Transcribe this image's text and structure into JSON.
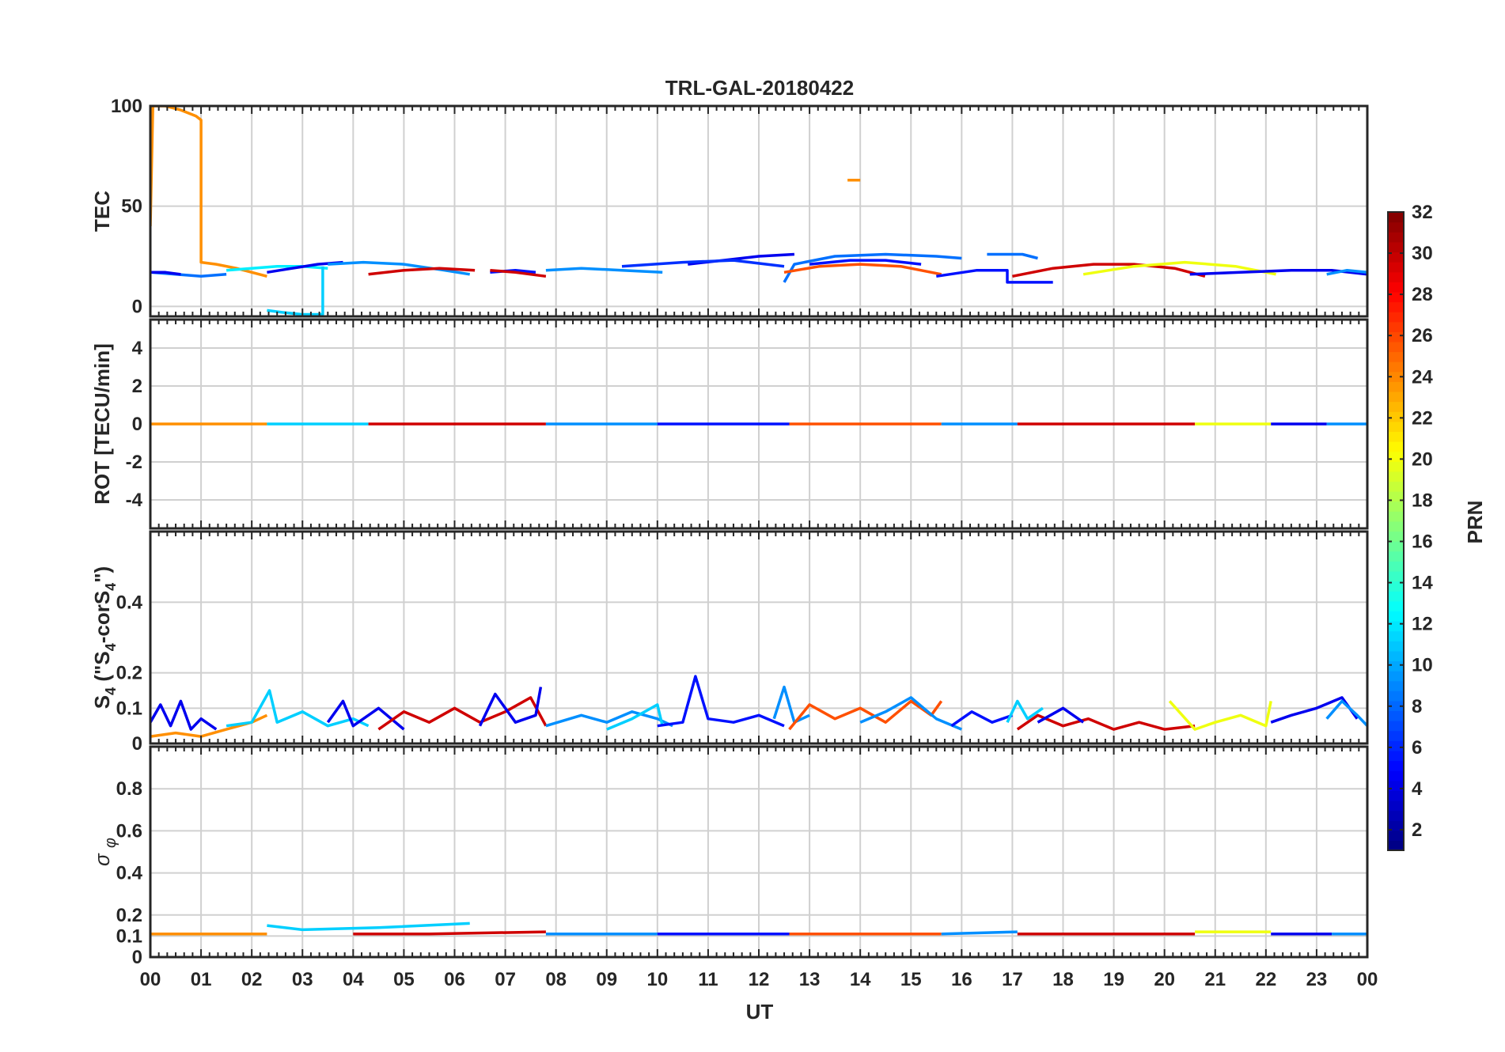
{
  "chart_data": {
    "type": "line",
    "title": "TRL-GAL-20180422",
    "xlabel": "UT",
    "x_ticks": [
      "00",
      "01",
      "02",
      "03",
      "04",
      "05",
      "06",
      "07",
      "08",
      "09",
      "10",
      "11",
      "12",
      "13",
      "14",
      "15",
      "16",
      "17",
      "18",
      "19",
      "20",
      "21",
      "22",
      "23",
      "00"
    ],
    "xlim": [
      0,
      24
    ],
    "colorbar": {
      "label": "PRN",
      "range": [
        1,
        32
      ],
      "ticks": [
        "2",
        "4",
        "6",
        "8",
        "10",
        "12",
        "14",
        "16",
        "18",
        "20",
        "22",
        "24",
        "26",
        "28",
        "30",
        "32"
      ]
    },
    "panels": [
      {
        "ylabel": "TEC",
        "ylim": [
          -5,
          100
        ],
        "yticks": [
          "0",
          "50",
          "100"
        ],
        "series": [
          {
            "prn": 24,
            "x": [
              0.0,
              0.05,
              0.3,
              0.6,
              0.9,
              1.0,
              1.0,
              1.3,
              1.7,
              2.0,
              2.3
            ],
            "y": [
              40,
              100,
              100,
              98,
              95,
              93,
              22,
              21,
              19,
              17,
              15
            ]
          },
          {
            "prn": 24,
            "x": [
              13.75,
              14.0
            ],
            "y": [
              63,
              63
            ]
          },
          {
            "prn": 8,
            "x": [
              0.0,
              0.5,
              1.0,
              1.5
            ],
            "y": [
              17,
              16,
              15,
              16
            ]
          },
          {
            "prn": 12,
            "x": [
              1.5,
              2.0,
              2.5,
              3.0,
              3.5
            ],
            "y": [
              18,
              19,
              20,
              20,
              19
            ]
          },
          {
            "prn": 11,
            "x": [
              2.3,
              2.6,
              3.0,
              3.4,
              3.4
            ],
            "y": [
              -2,
              -3,
              -4,
              -4,
              20
            ]
          },
          {
            "prn": 4,
            "x": [
              0.0,
              0.3,
              0.6
            ],
            "y": [
              17,
              17,
              16
            ]
          },
          {
            "prn": 4,
            "x": [
              2.3,
              2.8,
              3.3,
              3.8
            ],
            "y": [
              17,
              19,
              21,
              22
            ]
          },
          {
            "prn": 9,
            "x": [
              3.5,
              4.2,
              5.0,
              5.8,
              6.3
            ],
            "y": [
              21,
              22,
              21,
              18,
              16
            ]
          },
          {
            "prn": 30,
            "x": [
              4.3,
              5.0,
              5.7,
              6.4
            ],
            "y": [
              16,
              18,
              19,
              18
            ]
          },
          {
            "prn": 5,
            "x": [
              6.7,
              7.2,
              7.6
            ],
            "y": [
              17,
              18,
              17
            ]
          },
          {
            "prn": 30,
            "x": [
              6.7,
              7.2,
              7.8
            ],
            "y": [
              18,
              17,
              15
            ]
          },
          {
            "prn": 9,
            "x": [
              7.8,
              8.5,
              9.3,
              10.1
            ],
            "y": [
              18,
              19,
              18,
              17
            ]
          },
          {
            "prn": 4,
            "x": [
              10.6,
              11.3,
              12.0,
              12.7
            ],
            "y": [
              21,
              23,
              25,
              26
            ]
          },
          {
            "prn": 6,
            "x": [
              9.3,
              10.5,
              11.5,
              12.5
            ],
            "y": [
              20,
              22,
              23,
              20
            ]
          },
          {
            "prn": 8,
            "x": [
              12.5,
              12.7,
              13.5,
              14.5,
              15.5,
              16.0
            ],
            "y": [
              12,
              21,
              25,
              26,
              25,
              24
            ]
          },
          {
            "prn": 26,
            "x": [
              12.5,
              13.2,
              14.0,
              14.8,
              15.6
            ],
            "y": [
              17,
              20,
              21,
              20,
              16
            ]
          },
          {
            "prn": 5,
            "x": [
              13.0,
              13.8,
              14.5,
              15.2
            ],
            "y": [
              21,
              23,
              23,
              21
            ]
          },
          {
            "prn": 5,
            "x": [
              15.5,
              16.3,
              16.9,
              16.9,
              17.8
            ],
            "y": [
              15,
              18,
              18,
              12,
              12
            ]
          },
          {
            "prn": 8,
            "x": [
              16.5,
              17.2,
              17.5
            ],
            "y": [
              26,
              26,
              24
            ]
          },
          {
            "prn": 30,
            "x": [
              17.0,
              17.8,
              18.6,
              19.4,
              20.2,
              20.8
            ],
            "y": [
              15,
              19,
              21,
              21,
              19,
              15
            ]
          },
          {
            "prn": 20,
            "x": [
              18.4,
              19.4,
              20.4,
              21.4,
              22.2
            ],
            "y": [
              16,
              20,
              22,
              20,
              16
            ]
          },
          {
            "prn": 4,
            "x": [
              20.5,
              21.5,
              22.5,
              23.3,
              24.0
            ],
            "y": [
              16,
              17,
              18,
              18,
              16
            ]
          },
          {
            "prn": 9,
            "x": [
              23.2,
              23.6,
              24.0
            ],
            "y": [
              16,
              18,
              17
            ]
          }
        ]
      },
      {
        "ylabel": "ROT [TECU/min]",
        "ylim": [
          -5.5,
          5.5
        ],
        "yticks": [
          "-4",
          "-2",
          "0",
          "2",
          "4"
        ],
        "series": [
          {
            "prn": 24,
            "x": [
              0.0,
              2.3
            ],
            "y": [
              0,
              0
            ]
          },
          {
            "prn": 11,
            "x": [
              2.3,
              4.3
            ],
            "y": [
              0,
              0
            ]
          },
          {
            "prn": 30,
            "x": [
              4.3,
              7.8
            ],
            "y": [
              0,
              0
            ]
          },
          {
            "prn": 9,
            "x": [
              7.8,
              10.0
            ],
            "y": [
              0,
              0
            ]
          },
          {
            "prn": 5,
            "x": [
              10.0,
              12.6
            ],
            "y": [
              0,
              0
            ]
          },
          {
            "prn": 26,
            "x": [
              12.6,
              15.6
            ],
            "y": [
              0,
              0
            ]
          },
          {
            "prn": 9,
            "x": [
              15.6,
              17.1
            ],
            "y": [
              0,
              0
            ]
          },
          {
            "prn": 30,
            "x": [
              17.1,
              20.6
            ],
            "y": [
              0,
              0
            ]
          },
          {
            "prn": 20,
            "x": [
              20.6,
              22.1
            ],
            "y": [
              0,
              0
            ]
          },
          {
            "prn": 4,
            "x": [
              22.1,
              23.2
            ],
            "y": [
              0,
              0
            ]
          },
          {
            "prn": 9,
            "x": [
              23.2,
              24.0
            ],
            "y": [
              0,
              0
            ]
          }
        ]
      },
      {
        "ylabel": "S4 (\"S4-corS4\")",
        "ylabel_parts": {
          "s": "S",
          "sub": "4",
          "open": " (\"S",
          "sub2": "4",
          "mid": "-corS",
          "sub3": "4",
          "close": "\")"
        },
        "ylim": [
          0,
          0.6
        ],
        "yticks": [
          "0",
          "0.1",
          "0.2",
          "0.4"
        ],
        "series": [
          {
            "prn": 4,
            "x": [
              0.0,
              0.2,
              0.4,
              0.6,
              0.8,
              1.0,
              1.3
            ],
            "y": [
              0.06,
              0.11,
              0.05,
              0.12,
              0.04,
              0.07,
              0.04
            ]
          },
          {
            "prn": 24,
            "x": [
              0.0,
              0.5,
              1.0,
              1.5,
              2.0,
              2.3
            ],
            "y": [
              0.02,
              0.03,
              0.02,
              0.04,
              0.06,
              0.08
            ]
          },
          {
            "prn": 11,
            "x": [
              1.5,
              2.0,
              2.35,
              2.5,
              3.0,
              3.5,
              4.0,
              4.3
            ],
            "y": [
              0.05,
              0.06,
              0.15,
              0.06,
              0.09,
              0.05,
              0.07,
              0.05
            ]
          },
          {
            "prn": 4,
            "x": [
              3.5,
              3.8,
              4.0,
              4.5,
              5.0
            ],
            "y": [
              0.06,
              0.12,
              0.05,
              0.1,
              0.04
            ]
          },
          {
            "prn": 30,
            "x": [
              4.5,
              5.0,
              5.5,
              6.0,
              6.5,
              7.0,
              7.5,
              7.8
            ],
            "y": [
              0.04,
              0.09,
              0.06,
              0.1,
              0.06,
              0.09,
              0.13,
              0.05
            ]
          },
          {
            "prn": 4,
            "x": [
              6.5,
              6.8,
              7.2,
              7.6,
              7.7
            ],
            "y": [
              0.05,
              0.14,
              0.06,
              0.08,
              0.16
            ]
          },
          {
            "prn": 9,
            "x": [
              7.8,
              8.5,
              9.0,
              9.5,
              10.0,
              10.3
            ],
            "y": [
              0.05,
              0.08,
              0.06,
              0.09,
              0.07,
              0.05
            ]
          },
          {
            "prn": 11,
            "x": [
              9.0,
              9.5,
              10.0,
              10.1
            ],
            "y": [
              0.04,
              0.07,
              0.11,
              0.05
            ]
          },
          {
            "prn": 5,
            "x": [
              10.0,
              10.5,
              10.75,
              11.0,
              11.5,
              12.0,
              12.5
            ],
            "y": [
              0.05,
              0.06,
              0.19,
              0.07,
              0.06,
              0.08,
              0.05
            ]
          },
          {
            "prn": 9,
            "x": [
              12.3,
              12.5,
              12.7,
              13.0
            ],
            "y": [
              0.07,
              0.16,
              0.06,
              0.08
            ]
          },
          {
            "prn": 26,
            "x": [
              12.6,
              13.0,
              13.5,
              14.0,
              14.5,
              15.0,
              15.4,
              15.6
            ],
            "y": [
              0.04,
              0.11,
              0.07,
              0.1,
              0.06,
              0.12,
              0.08,
              0.12
            ]
          },
          {
            "prn": 9,
            "x": [
              14.0,
              14.5,
              15.0,
              15.5,
              16.0
            ],
            "y": [
              0.06,
              0.09,
              0.13,
              0.07,
              0.04
            ]
          },
          {
            "prn": 5,
            "x": [
              15.8,
              16.2,
              16.6,
              17.0
            ],
            "y": [
              0.05,
              0.09,
              0.06,
              0.08
            ]
          },
          {
            "prn": 11,
            "x": [
              16.9,
              17.1,
              17.3,
              17.6
            ],
            "y": [
              0.06,
              0.12,
              0.07,
              0.1
            ]
          },
          {
            "prn": 30,
            "x": [
              17.1,
              17.5,
              18.0,
              18.5,
              19.0,
              19.5,
              20.0,
              20.6
            ],
            "y": [
              0.04,
              0.08,
              0.05,
              0.07,
              0.04,
              0.06,
              0.04,
              0.05
            ]
          },
          {
            "prn": 4,
            "x": [
              17.5,
              18.0,
              18.4
            ],
            "y": [
              0.06,
              0.1,
              0.06
            ]
          },
          {
            "prn": 20,
            "x": [
              20.1,
              20.6,
              21.0,
              21.5,
              22.0,
              22.1
            ],
            "y": [
              0.12,
              0.04,
              0.06,
              0.08,
              0.05,
              0.12
            ]
          },
          {
            "prn": 4,
            "x": [
              22.1,
              22.5,
              23.0,
              23.5,
              23.8
            ],
            "y": [
              0.06,
              0.08,
              0.1,
              0.13,
              0.07
            ]
          },
          {
            "prn": 9,
            "x": [
              23.2,
              23.5,
              23.8,
              24.0
            ],
            "y": [
              0.07,
              0.12,
              0.08,
              0.05
            ]
          }
        ]
      },
      {
        "ylabel": "σ φ",
        "ylabel_parts": {
          "sigma": "σ",
          "phi": "φ"
        },
        "ylim": [
          0,
          1.0
        ],
        "yticks": [
          "0",
          "0.1",
          "0.2",
          "0.4",
          "0.6",
          "0.8"
        ],
        "series": [
          {
            "prn": 24,
            "x": [
              0.0,
              1.0,
              2.3
            ],
            "y": [
              0.11,
              0.11,
              0.11
            ]
          },
          {
            "prn": 11,
            "x": [
              2.3,
              3.0,
              4.5,
              6.3
            ],
            "y": [
              0.15,
              0.13,
              0.14,
              0.16
            ]
          },
          {
            "prn": 30,
            "x": [
              4.0,
              5.5,
              7.8
            ],
            "y": [
              0.11,
              0.11,
              0.12
            ]
          },
          {
            "prn": 9,
            "x": [
              7.8,
              10.0
            ],
            "y": [
              0.11,
              0.11
            ]
          },
          {
            "prn": 5,
            "x": [
              10.0,
              12.6
            ],
            "y": [
              0.11,
              0.11
            ]
          },
          {
            "prn": 26,
            "x": [
              12.6,
              15.6
            ],
            "y": [
              0.11,
              0.11
            ]
          },
          {
            "prn": 9,
            "x": [
              15.6,
              17.1
            ],
            "y": [
              0.11,
              0.12
            ]
          },
          {
            "prn": 30,
            "x": [
              17.1,
              20.6
            ],
            "y": [
              0.11,
              0.11
            ]
          },
          {
            "prn": 20,
            "x": [
              20.6,
              22.1
            ],
            "y": [
              0.12,
              0.12
            ]
          },
          {
            "prn": 4,
            "x": [
              22.1,
              23.3
            ],
            "y": [
              0.11,
              0.11
            ]
          },
          {
            "prn": 9,
            "x": [
              23.3,
              24.0
            ],
            "y": [
              0.11,
              0.11
            ]
          }
        ]
      }
    ]
  }
}
